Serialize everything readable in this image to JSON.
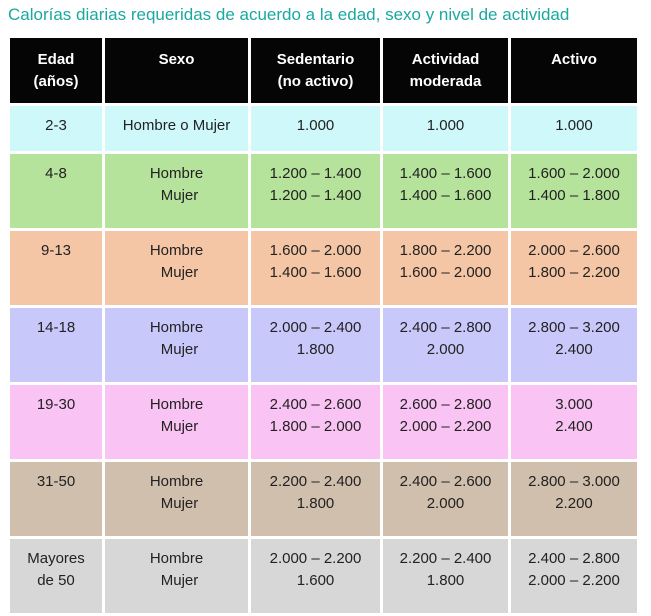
{
  "title": "Calorías diarias requeridas de acuerdo a la edad, sexo y nivel de actividad",
  "headers": [
    [
      "Edad",
      "(años)"
    ],
    [
      "Sexo"
    ],
    [
      "Sedentario",
      "(no activo)"
    ],
    [
      "Actividad",
      "moderada"
    ],
    [
      "Activo"
    ]
  ],
  "rows": [
    {
      "color": "#cff8fb",
      "edad": [
        "2-3"
      ],
      "sexo": [
        "Hombre o Mujer"
      ],
      "sedentario": [
        "1.000"
      ],
      "moderada": [
        "1.000"
      ],
      "activo": [
        "1.000"
      ]
    },
    {
      "color": "#b6e39b",
      "edad": [
        "4-8"
      ],
      "sexo": [
        "Hombre",
        "Mujer"
      ],
      "sedentario": [
        "1.200 – 1.400",
        "1.200 – 1.400"
      ],
      "moderada": [
        "1.400 – 1.600",
        "1.400 – 1.600"
      ],
      "activo": [
        "1.600 – 2.000",
        "1.400 – 1.800"
      ]
    },
    {
      "color": "#f5c6a5",
      "edad": [
        "9-13"
      ],
      "sexo": [
        "Hombre",
        "Mujer"
      ],
      "sedentario": [
        "1.600 – 2.000",
        "1.400 – 1.600"
      ],
      "moderada": [
        "1.800 – 2.200",
        "1.600 – 2.000"
      ],
      "activo": [
        "2.000 – 2.600",
        "1.800 – 2.200"
      ]
    },
    {
      "color": "#c9c8fb",
      "edad": [
        "14-18"
      ],
      "sexo": [
        "Hombre",
        "Mujer"
      ],
      "sedentario": [
        "2.000 – 2.400",
        "1.800"
      ],
      "moderada": [
        "2.400 – 2.800",
        "2.000"
      ],
      "activo": [
        "2.800 – 3.200",
        "2.400"
      ]
    },
    {
      "color": "#f9c3f3",
      "edad": [
        "19-30"
      ],
      "sexo": [
        "Hombre",
        "Mujer"
      ],
      "sedentario": [
        "2.400 – 2.600",
        "1.800 – 2.000"
      ],
      "moderada": [
        "2.600 – 2.800",
        "2.000 – 2.200"
      ],
      "activo": [
        "3.000",
        "2.400"
      ]
    },
    {
      "color": "#d1bfad",
      "edad": [
        "31-50"
      ],
      "sexo": [
        "Hombre",
        "Mujer"
      ],
      "sedentario": [
        "2.200 – 2.400",
        "1.800"
      ],
      "moderada": [
        "2.400 – 2.600",
        "2.000"
      ],
      "activo": [
        "2.800 – 3.000",
        "2.200"
      ]
    },
    {
      "color": "#d7d7d7",
      "edad": [
        "Mayores",
        "de 50"
      ],
      "sexo": [
        "Hombre",
        "Mujer"
      ],
      "sedentario": [
        "2.000 – 2.200",
        "1.600"
      ],
      "moderada": [
        "2.200 – 2.400",
        "1.800"
      ],
      "activo": [
        "2.400 – 2.800",
        "2.000 – 2.200"
      ]
    }
  ]
}
